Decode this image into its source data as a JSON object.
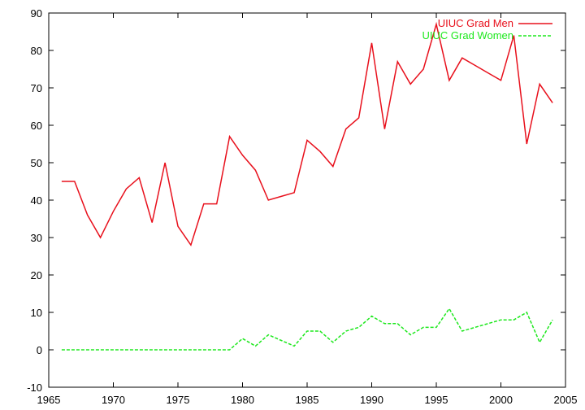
{
  "chart_data": {
    "type": "line",
    "title": "",
    "xlabel": "",
    "ylabel": "",
    "xlim": [
      1965,
      2005
    ],
    "ylim": [
      -10,
      90
    ],
    "xticks": [
      1965,
      1970,
      1975,
      1980,
      1985,
      1990,
      1995,
      2000,
      2005
    ],
    "yticks": [
      -10,
      0,
      10,
      20,
      30,
      40,
      50,
      60,
      70,
      80,
      90
    ],
    "grid": false,
    "legend_position": "top-right",
    "series": [
      {
        "name": "UIUC Grad Men",
        "color": "#e8101c",
        "dash": "solid",
        "x": [
          1966,
          1967,
          1968,
          1969,
          1970,
          1971,
          1972,
          1973,
          1974,
          1975,
          1976,
          1977,
          1978,
          1979,
          1980,
          1981,
          1982,
          1983,
          1984,
          1985,
          1986,
          1987,
          1988,
          1989,
          1990,
          1991,
          1992,
          1993,
          1994,
          1995,
          1996,
          1997,
          1998,
          1999,
          2000,
          2001,
          2002,
          2003,
          2004
        ],
        "values": [
          45,
          45,
          36,
          30,
          37,
          43,
          46,
          34,
          50,
          33,
          28,
          39,
          39,
          57,
          52,
          48,
          40,
          41,
          42,
          56,
          53,
          49,
          59,
          62,
          82,
          59,
          77,
          71,
          75,
          87,
          72,
          78,
          76,
          74,
          72,
          84,
          55,
          71,
          66
        ]
      },
      {
        "name": "UIUC Grad Women",
        "color": "#1ee81e",
        "dash": "dashed",
        "x": [
          1966,
          1967,
          1968,
          1969,
          1970,
          1971,
          1972,
          1973,
          1974,
          1975,
          1976,
          1977,
          1978,
          1979,
          1980,
          1981,
          1982,
          1983,
          1984,
          1985,
          1986,
          1987,
          1988,
          1989,
          1990,
          1991,
          1992,
          1993,
          1994,
          1995,
          1996,
          1997,
          1998,
          1999,
          2000,
          2001,
          2002,
          2003,
          2004
        ],
        "values": [
          0,
          0,
          0,
          0,
          0,
          0,
          0,
          0,
          0,
          0,
          0,
          0,
          0,
          0,
          3,
          1,
          4,
          2.5,
          1,
          5,
          5,
          2,
          5,
          6,
          9,
          7,
          7,
          4,
          6,
          6,
          11,
          5,
          6,
          7,
          8,
          8,
          10,
          2,
          8
        ]
      }
    ]
  }
}
